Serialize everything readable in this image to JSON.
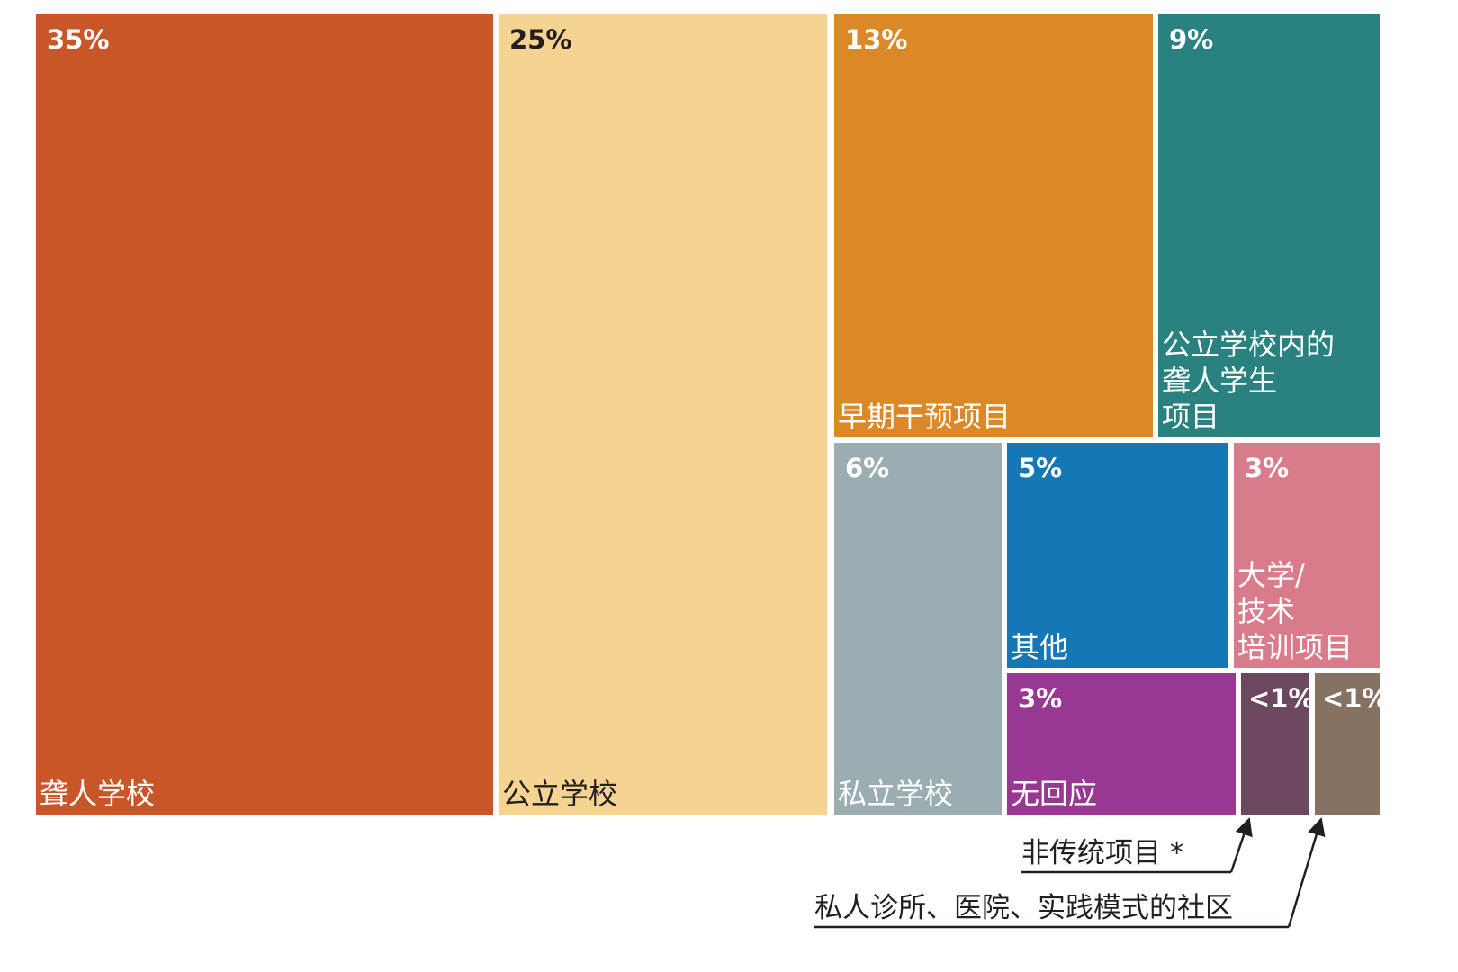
{
  "chart_data": {
    "type": "treemap",
    "title": "",
    "unit": "%",
    "items": [
      {
        "label": "聋人学校",
        "value": 35,
        "display": "35%",
        "color": "#c85628",
        "text_color": "#ffffff"
      },
      {
        "label": "公立学校",
        "value": 25,
        "display": "25%",
        "color": "#f5d390",
        "text_color": "#231f20"
      },
      {
        "label": "早期干预项目",
        "value": 13,
        "display": "13%",
        "color": "#db8927",
        "text_color": "#ffffff"
      },
      {
        "label": "公立学校内的聋人学生项目",
        "lines": [
          "公立学校内的",
          "聋人学生",
          "项目"
        ],
        "value": 9,
        "display": "9%",
        "color": "#2a8280",
        "text_color": "#ffffff"
      },
      {
        "label": "私立学校",
        "value": 6,
        "display": "6%",
        "color": "#9badb1",
        "text_color": "#ffffff"
      },
      {
        "label": "其他",
        "value": 5,
        "display": "5%",
        "color": "#1677b6",
        "text_color": "#ffffff"
      },
      {
        "label": "大学/技术培训项目",
        "lines": [
          "大学/",
          "技术",
          "培训项目"
        ],
        "value": 3,
        "display": "3%",
        "color": "#d97b8a",
        "text_color": "#ffffff"
      },
      {
        "label": "无回应",
        "value": 3,
        "display": "3%",
        "color": "#983892",
        "text_color": "#ffffff"
      },
      {
        "label": "非传统项目 *",
        "value": 0.5,
        "display": "<1%",
        "color": "#6b485d",
        "text_color": "#ffffff"
      },
      {
        "label": "私人诊所、医院、实践模式的社区",
        "value": 0.5,
        "display": "<1%",
        "color": "#857262",
        "text_color": "#ffffff"
      }
    ],
    "callouts": [
      {
        "text": "非传统项目 *",
        "target": "非传统项目 *"
      },
      {
        "text": "私人诊所、医院、实践模式的社区",
        "target": "私人诊所、医院、实践模式的社区"
      }
    ],
    "legend": "none"
  }
}
